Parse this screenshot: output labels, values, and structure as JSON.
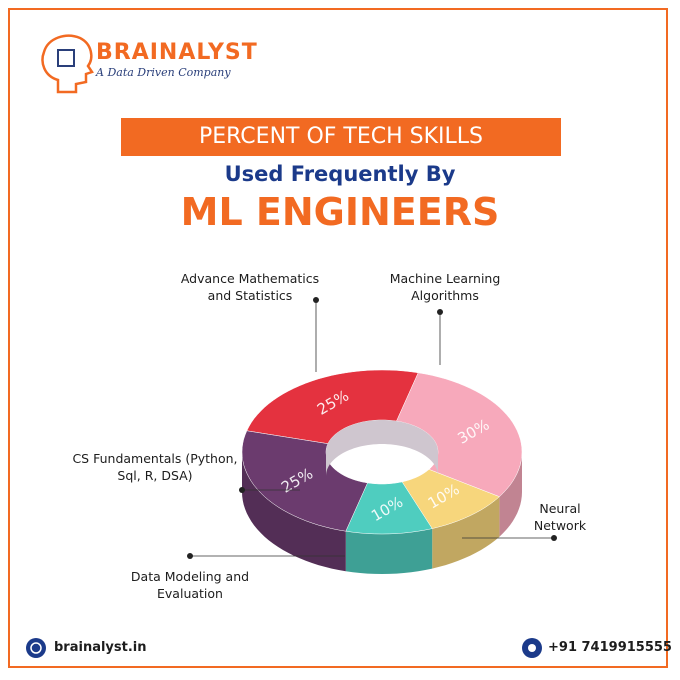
{
  "header": {
    "brand": "BRAINALYST",
    "tagline": "A Data Driven Company"
  },
  "chart_data": {
    "type": "pie",
    "title": "PERCENT OF TECH SKILLS",
    "subtitle": "Used Frequently By",
    "highlight": "ML ENGINEERS",
    "categories": [
      "Advance Mathematics and Statistics",
      "Machine Learning Algorithms",
      "Neural Network",
      "Data Modeling and Evaluation",
      "CS Fundamentals (Python, Sql, R, DSA)"
    ],
    "values": [
      25,
      30,
      10,
      10,
      25
    ],
    "value_labels": [
      "25%",
      "30%",
      "10%",
      "10%",
      "25%"
    ],
    "colors": [
      "#e4323f",
      "#f7a9bb",
      "#f7d67c",
      "#4fcdbf",
      "#6b3b6e"
    ]
  },
  "footer": {
    "website": "brainalyst.in",
    "phone": "+91 7419915555"
  }
}
